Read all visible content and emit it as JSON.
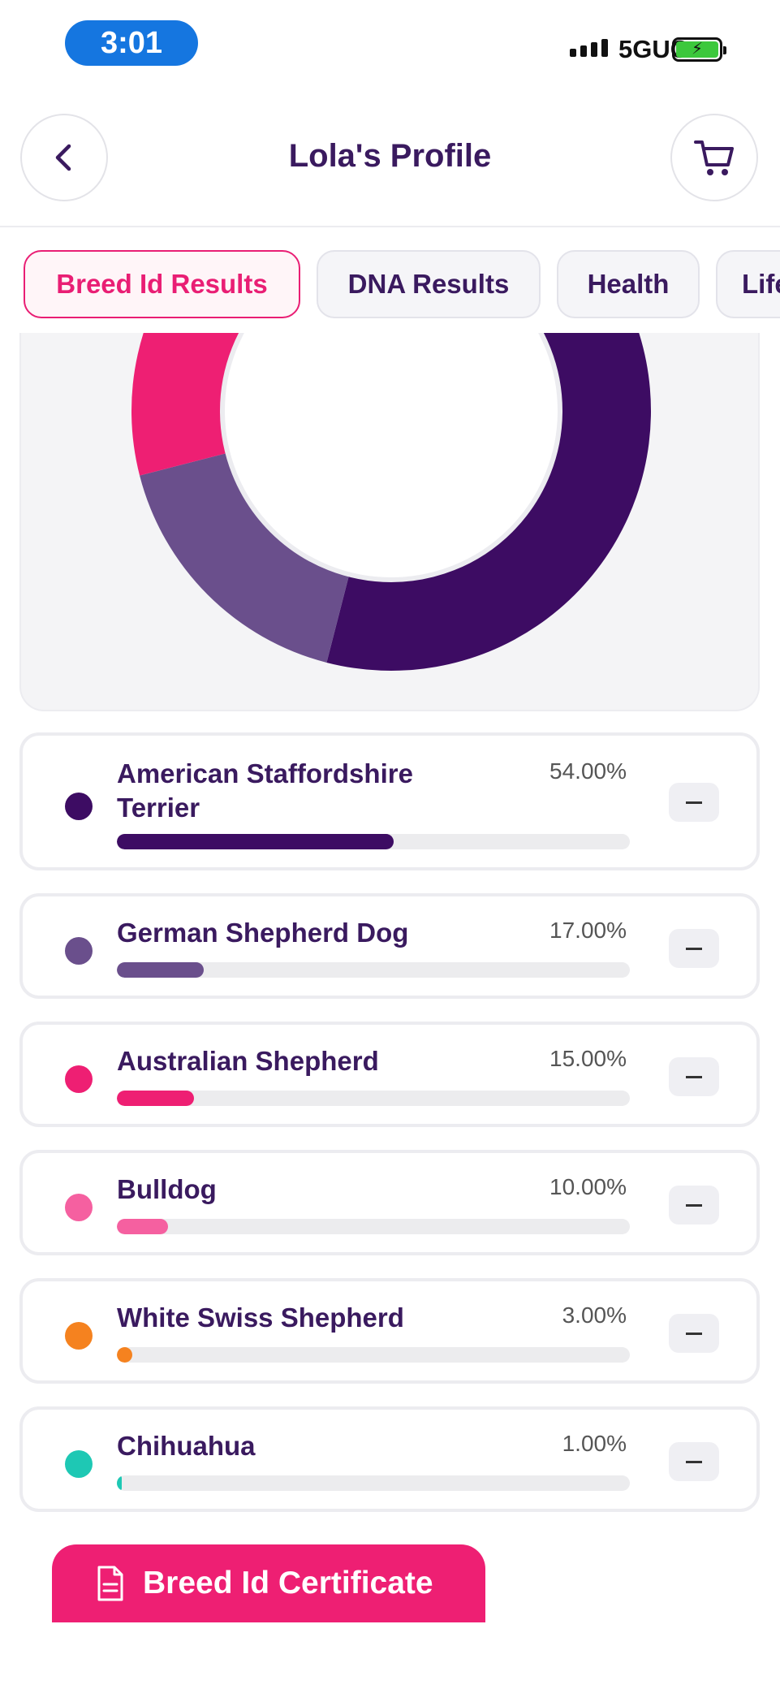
{
  "status_bar": {
    "time": "3:01",
    "network": "5GUC"
  },
  "header": {
    "title": "Lola's Profile",
    "back_icon": "chevron-left-icon",
    "cart_icon": "cart-icon"
  },
  "tabs": [
    {
      "label": "Breed Id Results",
      "active": true
    },
    {
      "label": "DNA Results",
      "active": false
    },
    {
      "label": "Health",
      "active": false
    },
    {
      "label": "Lifestyle",
      "active": false
    }
  ],
  "chart_data": {
    "type": "pie",
    "categories": [
      "American Staffordshire Terrier",
      "German Shepherd Dog",
      "Australian Shepherd",
      "Bulldog",
      "White Swiss Shepherd",
      "Chihuahua"
    ],
    "values": [
      54,
      17,
      15,
      10,
      3,
      1
    ],
    "colors": [
      "#3d0c63",
      "#6a4f8c",
      "#ee1f73",
      "#f560a0",
      "#f5821f",
      "#1ec8b4"
    ]
  },
  "breeds": [
    {
      "name": "American Staffordshire Terrier",
      "percent": "54.00%",
      "value": 54,
      "color": "#3d0c63"
    },
    {
      "name": "German Shepherd Dog",
      "percent": "17.00%",
      "value": 17,
      "color": "#6a4f8c"
    },
    {
      "name": "Australian Shepherd",
      "percent": "15.00%",
      "value": 15,
      "color": "#ee1f73"
    },
    {
      "name": "Bulldog",
      "percent": "10.00%",
      "value": 10,
      "color": "#f560a0"
    },
    {
      "name": "White Swiss Shepherd",
      "percent": "3.00%",
      "value": 3,
      "color": "#f5821f"
    },
    {
      "name": "Chihuahua",
      "percent": "1.00%",
      "value": 1,
      "color": "#1ec8b4"
    }
  ],
  "certificate_button": {
    "label": "Breed Id Certificate",
    "icon": "document-icon"
  }
}
